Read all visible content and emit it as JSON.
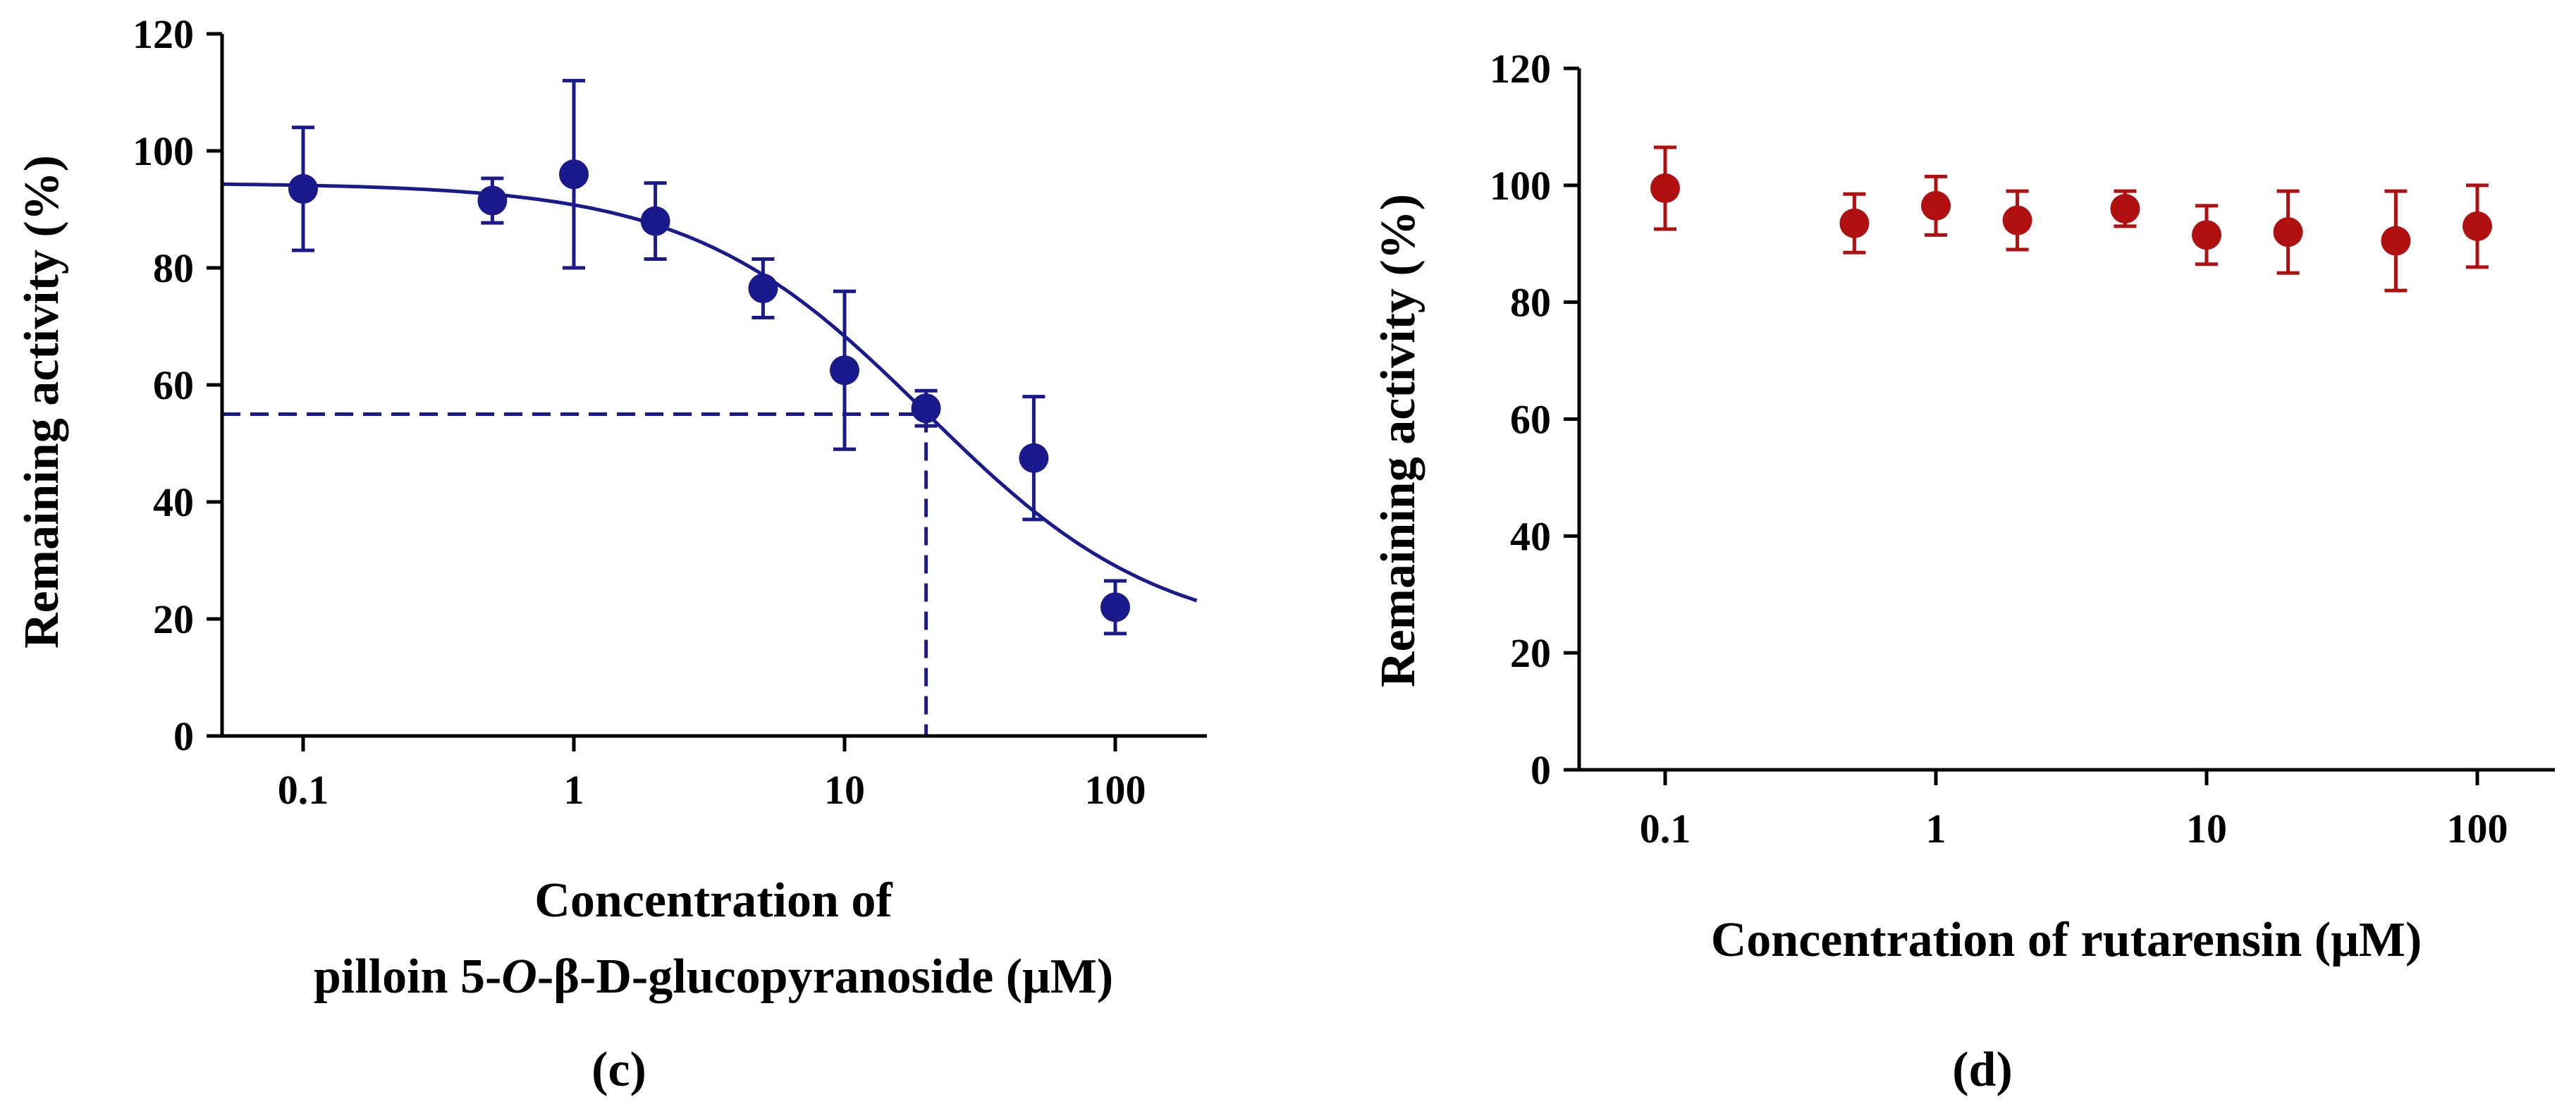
{
  "chart_data": [
    {
      "type": "scatter",
      "panel_label": "(c)",
      "ylabel": "Remaining activity (%)",
      "xlabel_line1": "Concentration of",
      "xlabel_line2": {
        "pre": "pilloin 5-",
        "italic": "O",
        "post": "-β-D-glucopyranoside (μM)"
      },
      "xscale": "log",
      "xlim": [
        0.05,
        200
      ],
      "ylim": [
        0,
        120
      ],
      "yticks": [
        0,
        20,
        40,
        60,
        80,
        100,
        120
      ],
      "ytick_labels": [
        "0",
        "20",
        "40",
        "60",
        "80",
        "100",
        "120"
      ],
      "xticks": [
        0.1,
        1,
        10,
        100
      ],
      "xtick_labels": [
        "0.1",
        "1",
        "10",
        "100"
      ],
      "color": "#1a1a8c",
      "series": [
        {
          "name": "pilloin 5-O-β-D-glucopyranoside",
          "x": [
            0.1,
            0.5,
            1,
            2,
            5,
            10,
            20,
            50,
            100
          ],
          "y": [
            93.5,
            91.5,
            96,
            88,
            76.5,
            62.5,
            56,
            47.5,
            22
          ],
          "err": [
            10.5,
            3.8,
            16,
            6.5,
            5,
            13.5,
            3,
            10.5,
            4.5
          ]
        }
      ],
      "fit_curve": {
        "top": 94.5,
        "bottom": 16,
        "ic50": 20,
        "hill": 1
      },
      "ic50_marker": {
        "x": 20,
        "y": 55
      }
    },
    {
      "type": "scatter",
      "panel_label": "(d)",
      "ylabel": "Remaining activity (%)",
      "xlabel": "Concentration of rutarensin (μM)",
      "xscale": "log",
      "xlim": [
        0.05,
        200
      ],
      "ylim": [
        0,
        120
      ],
      "yticks": [
        0,
        20,
        40,
        60,
        80,
        100,
        120
      ],
      "ytick_labels": [
        "0",
        "20",
        "40",
        "60",
        "80",
        "100",
        "120"
      ],
      "xticks": [
        0.1,
        1,
        10,
        100
      ],
      "xtick_labels": [
        "0.1",
        "1",
        "10",
        "100"
      ],
      "color": "#b01010",
      "series": [
        {
          "name": "rutarensin",
          "x": [
            0.1,
            0.5,
            1,
            2,
            5,
            10,
            20,
            50,
            100
          ],
          "y": [
            99.5,
            93.5,
            96.5,
            94,
            96,
            91.5,
            92,
            90.5,
            93
          ],
          "err": [
            7,
            5,
            5,
            5,
            3,
            5,
            7,
            8.5,
            7
          ]
        }
      ]
    }
  ]
}
